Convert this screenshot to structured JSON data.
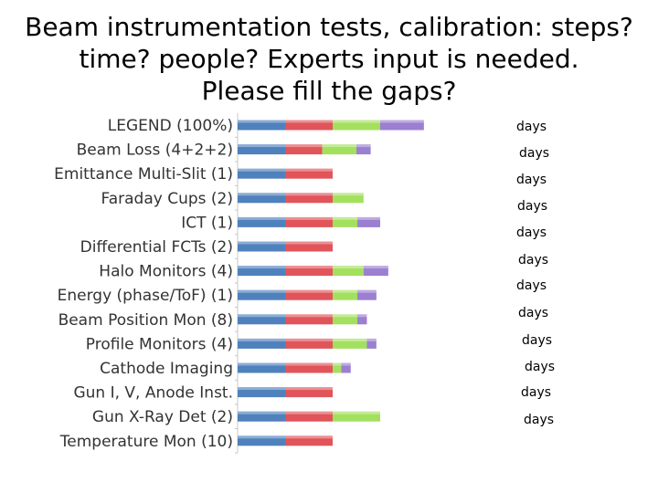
{
  "slide": {
    "title_lines": [
      "Beam instrumentation tests, calibration: steps?",
      "time? people? Experts input is needed.",
      "Please fill the gaps?"
    ]
  },
  "chart_data": {
    "type": "bar",
    "orientation": "horizontal",
    "stacked": true,
    "title": "",
    "xlabel": "",
    "ylabel": "",
    "grid": false,
    "legend": "none",
    "categories": [
      "LEGEND (100%)",
      "Beam Loss (4+2+2)",
      "Emittance Multi-Slit (1)",
      "Faraday Cups (2)",
      "ICT (1)",
      "Differential FCTs (2)",
      "Halo Monitors (4)",
      "Energy (phase/ToF) (1)",
      "Beam Position Mon (8)",
      "Profile Monitors (4)",
      "Cathode Imaging",
      "Gun I, V, Anode Inst.",
      "Gun X-Ray Det (2)",
      "Temperature Mon (10)"
    ],
    "series": [
      {
        "color": "#4f81bd",
        "values": [
          100,
          100,
          100,
          100,
          100,
          100,
          100,
          100,
          100,
          100,
          100,
          100,
          100,
          100
        ]
      },
      {
        "color": "#e0545a",
        "values": [
          100,
          78,
          100,
          100,
          100,
          100,
          100,
          100,
          100,
          100,
          100,
          100,
          100,
          100
        ]
      },
      {
        "color": "#a3e05e",
        "values": [
          100,
          72,
          0,
          65,
          52,
          0,
          65,
          52,
          52,
          72,
          18,
          0,
          100,
          0
        ]
      },
      {
        "color": "#9b7fd0",
        "values": [
          92,
          30,
          0,
          0,
          48,
          0,
          52,
          40,
          20,
          20,
          20,
          0,
          0,
          0
        ]
      }
    ],
    "xlim": [
      0,
      400
    ],
    "annotations": [
      "days",
      "days",
      "days",
      "days",
      "days",
      "days",
      "days",
      "days",
      "days",
      "days",
      "days",
      "days"
    ]
  }
}
